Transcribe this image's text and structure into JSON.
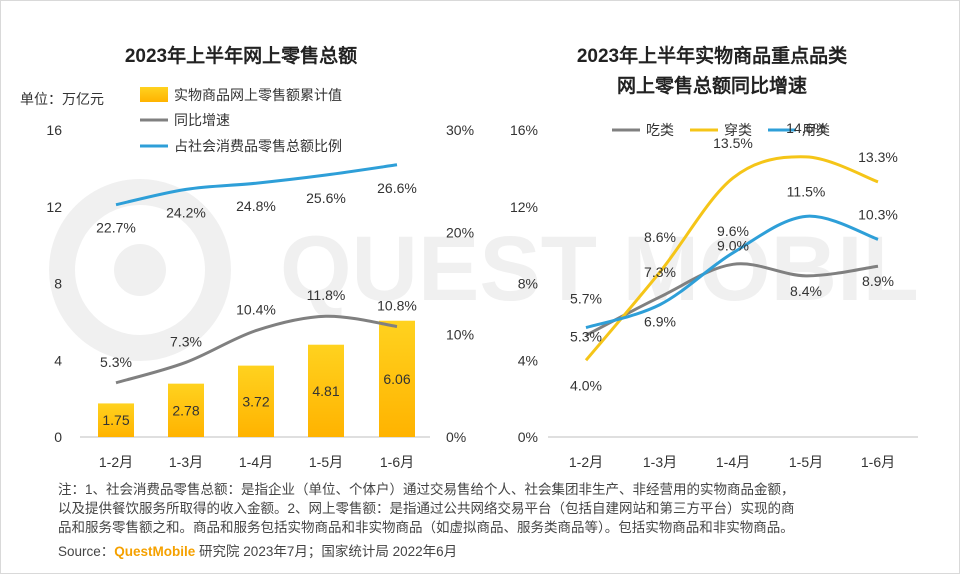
{
  "left_chart": {
    "title": "2023年上半年网上零售总额",
    "unit": "单位：万亿元",
    "legend": [
      "实物商品网上零售额累计值",
      "同比增速",
      "占社会消费品零售总额比例"
    ],
    "y_left_ticks": [
      "0",
      "4",
      "8",
      "12",
      "16"
    ],
    "y_right_ticks": [
      "0%",
      "10%",
      "20%",
      "30%"
    ]
  },
  "right_chart": {
    "title_line1": "2023年上半年实物商品重点品类",
    "title_line2": "网上零售总额同比增速",
    "legend": [
      "吃类",
      "穿类",
      "用类"
    ],
    "y_ticks": [
      "0%",
      "4%",
      "8%",
      "12%",
      "16%"
    ]
  },
  "chart_data": [
    {
      "type": "bar",
      "categories": [
        "1-2月",
        "1-3月",
        "1-4月",
        "1-5月",
        "1-6月"
      ],
      "series": [
        {
          "name": "实物商品网上零售额累计值",
          "type": "bar",
          "axis": "left",
          "values": [
            1.75,
            2.78,
            3.72,
            4.81,
            6.06
          ],
          "labels": [
            "1.75",
            "2.78",
            "3.72",
            "4.81",
            "6.06"
          ],
          "color": "#FFC000"
        },
        {
          "name": "同比增速",
          "type": "line",
          "axis": "right",
          "values": [
            5.3,
            7.3,
            10.4,
            11.8,
            10.8
          ],
          "labels": [
            "5.3%",
            "7.3%",
            "10.4%",
            "11.8%",
            "10.8%"
          ],
          "color": "#808080"
        },
        {
          "name": "占社会消费品零售总额比例",
          "type": "line",
          "axis": "right",
          "values": [
            22.7,
            24.2,
            24.8,
            25.6,
            26.6
          ],
          "labels": [
            "22.7%",
            "24.2%",
            "24.8%",
            "25.6%",
            "26.6%"
          ],
          "color": "#2E9FD8"
        }
      ],
      "ylim_left": [
        0,
        16
      ],
      "ylim_right": [
        0,
        30
      ],
      "legend_position": "top"
    },
    {
      "type": "line",
      "categories": [
        "1-2月",
        "1-3月",
        "1-4月",
        "1-5月",
        "1-6月"
      ],
      "series": [
        {
          "name": "吃类",
          "values": [
            5.3,
            7.3,
            9.0,
            8.4,
            8.9
          ],
          "labels": [
            "5.3%",
            "7.3%",
            "9.0%",
            "8.4%",
            "8.9%"
          ],
          "color": "#808080"
        },
        {
          "name": "穿类",
          "values": [
            4.0,
            8.6,
            13.5,
            14.6,
            13.3
          ],
          "labels": [
            "4.0%",
            "8.6%",
            "13.5%",
            "14.6%",
            "13.3%"
          ],
          "color": "#F5C518"
        },
        {
          "name": "用类",
          "values": [
            5.7,
            6.9,
            9.6,
            11.5,
            10.3
          ],
          "labels": [
            "5.7%",
            "6.9%",
            "9.6%",
            "11.5%",
            "10.3%"
          ],
          "color": "#2E9FD8"
        }
      ],
      "ylim": [
        0,
        16
      ],
      "legend_position": "top"
    }
  ],
  "watermark": "QUEST MOBILE",
  "notes": {
    "line1": "注：1、社会消费品零售总额：是指企业（单位、个体户）通过交易售给个人、社会集团非生产、非经营用的实物商品金额，",
    "line2": "以及提供餐饮服务所取得的收入金额。2、网上零售额：是指通过公共网络交易平台（包括自建网站和第三方平台）实现的商",
    "line3": "品和服务零售额之和。商品和服务包括实物商品和非实物商品（如虚拟商品、服务类商品等）。包括实物商品和非实物商品。"
  },
  "source": {
    "label": "Source：",
    "brand": "QuestMobile",
    "text": " 研究院 2023年7月；国家统计局 2022年6月"
  }
}
